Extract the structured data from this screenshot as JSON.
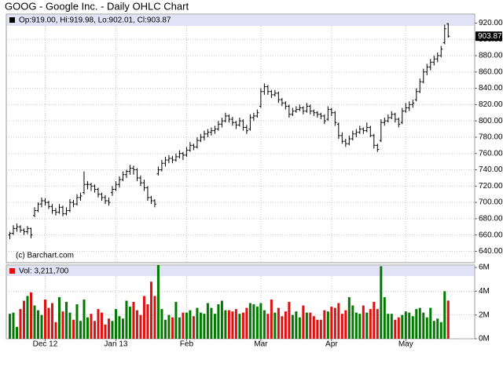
{
  "chart_data": [
    {
      "type": "ohlc",
      "title": "GOOG - Google Inc. - Daily OHLC Chart",
      "info": "Op:919.00, Hi:919.98, Lo:902.01, Cl:903.87",
      "source": "(c) Barchart.com",
      "last_label": "903.87",
      "color": "#000000",
      "xlim": [
        -1,
        131.5
      ],
      "ylim": [
        626,
        931
      ],
      "grid": true,
      "yticks": [
        {
          "value": 640,
          "label": "640.00"
        },
        {
          "value": 660,
          "label": "660.00"
        },
        {
          "value": 680,
          "label": "680.00"
        },
        {
          "value": 700,
          "label": "700.00"
        },
        {
          "value": 720,
          "label": "720.00"
        },
        {
          "value": 740,
          "label": "740.00"
        },
        {
          "value": 760,
          "label": "760.00"
        },
        {
          "value": 780,
          "label": "780.00"
        },
        {
          "value": 800,
          "label": "800.00"
        },
        {
          "value": 820,
          "label": "820.00"
        },
        {
          "value": 840,
          "label": "840.00"
        },
        {
          "value": 860,
          "label": "860.00"
        },
        {
          "value": 880,
          "label": "880.00"
        },
        {
          "value": 900,
          "label": "900.00"
        },
        {
          "value": 920,
          "label": "920.00"
        }
      ],
      "ohlc": [
        [
          660,
          664,
          655,
          662
        ],
        [
          662,
          672,
          660,
          668
        ],
        [
          668,
          674,
          664,
          670
        ],
        [
          670,
          672,
          663,
          666
        ],
        [
          666,
          668,
          660,
          664
        ],
        [
          664,
          671,
          661,
          668
        ],
        [
          668,
          669,
          656,
          660
        ],
        [
          684,
          694,
          682,
          690
        ],
        [
          690,
          700,
          688,
          698
        ],
        [
          698,
          706,
          694,
          702
        ],
        [
          702,
          705,
          696,
          700
        ],
        [
          700,
          702,
          692,
          695
        ],
        [
          695,
          698,
          686,
          690
        ],
        [
          690,
          693,
          684,
          688
        ],
        [
          688,
          698,
          686,
          694
        ],
        [
          694,
          696,
          683,
          686
        ],
        [
          686,
          694,
          684,
          690
        ],
        [
          690,
          704,
          688,
          700
        ],
        [
          700,
          703,
          694,
          698
        ],
        [
          698,
          710,
          696,
          706
        ],
        [
          706,
          712,
          702,
          708
        ],
        [
          712,
          738,
          710,
          722
        ],
        [
          722,
          726,
          716,
          722
        ],
        [
          722,
          724,
          714,
          720
        ],
        [
          720,
          722,
          712,
          716
        ],
        [
          716,
          718,
          706,
          710
        ],
        [
          710,
          712,
          702,
          706
        ],
        [
          706,
          709,
          698,
          702
        ],
        [
          702,
          706,
          696,
          700
        ],
        [
          712,
          720,
          708,
          716
        ],
        [
          716,
          726,
          714,
          722
        ],
        [
          722,
          732,
          718,
          728
        ],
        [
          728,
          738,
          726,
          734
        ],
        [
          734,
          740,
          730,
          738
        ],
        [
          738,
          746,
          734,
          742
        ],
        [
          742,
          745,
          734,
          740
        ],
        [
          740,
          742,
          726,
          730
        ],
        [
          730,
          733,
          720,
          724
        ],
        [
          724,
          728,
          714,
          718
        ],
        [
          718,
          720,
          702,
          706
        ],
        [
          706,
          708,
          698,
          702
        ],
        [
          702,
          704,
          694,
          698
        ],
        [
          735,
          744,
          733,
          740
        ],
        [
          740,
          752,
          738,
          748
        ],
        [
          748,
          756,
          744,
          752
        ],
        [
          752,
          758,
          748,
          754
        ],
        [
          754,
          757,
          748,
          752
        ],
        [
          752,
          760,
          750,
          756
        ],
        [
          756,
          764,
          754,
          760
        ],
        [
          760,
          762,
          752,
          758
        ],
        [
          758,
          768,
          756,
          764
        ],
        [
          764,
          774,
          762,
          770
        ],
        [
          770,
          772,
          764,
          768
        ],
        [
          768,
          780,
          766,
          776
        ],
        [
          776,
          784,
          774,
          780
        ],
        [
          780,
          788,
          776,
          784
        ],
        [
          784,
          790,
          780,
          786
        ],
        [
          786,
          792,
          782,
          788
        ],
        [
          788,
          794,
          784,
          790
        ],
        [
          790,
          800,
          788,
          796
        ],
        [
          796,
          804,
          792,
          800
        ],
        [
          800,
          810,
          798,
          806
        ],
        [
          806,
          808,
          798,
          802
        ],
        [
          802,
          805,
          794,
          798
        ],
        [
          798,
          800,
          790,
          795
        ],
        [
          795,
          804,
          793,
          800
        ],
        [
          800,
          802,
          788,
          792
        ],
        [
          792,
          795,
          784,
          788
        ],
        [
          790,
          808,
          788,
          804
        ],
        [
          804,
          810,
          800,
          806
        ],
        [
          806,
          814,
          804,
          810
        ],
        [
          818,
          840,
          816,
          836
        ],
        [
          836,
          846,
          832,
          842
        ],
        [
          842,
          844,
          832,
          836
        ],
        [
          836,
          838,
          828,
          832
        ],
        [
          832,
          838,
          830,
          834
        ],
        [
          834,
          836,
          822,
          826
        ],
        [
          826,
          828,
          818,
          822
        ],
        [
          822,
          824,
          814,
          818
        ],
        [
          818,
          820,
          804,
          808
        ],
        [
          808,
          816,
          806,
          812
        ],
        [
          812,
          818,
          810,
          814
        ],
        [
          814,
          820,
          812,
          816
        ],
        [
          816,
          818,
          808,
          812
        ],
        [
          812,
          822,
          810,
          818
        ],
        [
          818,
          820,
          808,
          812
        ],
        [
          812,
          814,
          806,
          810
        ],
        [
          810,
          812,
          804,
          808
        ],
        [
          808,
          810,
          802,
          806
        ],
        [
          806,
          808,
          796,
          800
        ],
        [
          802,
          818,
          800,
          814
        ],
        [
          814,
          816,
          806,
          810
        ],
        [
          810,
          812,
          794,
          798
        ],
        [
          796,
          798,
          778,
          782
        ],
        [
          782,
          786,
          772,
          775
        ],
        [
          775,
          778,
          768,
          772
        ],
        [
          772,
          782,
          770,
          778
        ],
        [
          778,
          788,
          776,
          784
        ],
        [
          784,
          790,
          780,
          786
        ],
        [
          786,
          794,
          784,
          790
        ],
        [
          790,
          792,
          784,
          788
        ],
        [
          788,
          798,
          786,
          792
        ],
        [
          792,
          794,
          780,
          782
        ],
        [
          782,
          784,
          766,
          770
        ],
        [
          770,
          772,
          762,
          765
        ],
        [
          776,
          802,
          774,
          798
        ],
        [
          798,
          804,
          794,
          800
        ],
        [
          800,
          808,
          798,
          804
        ],
        [
          804,
          812,
          802,
          808
        ],
        [
          808,
          810,
          798,
          802
        ],
        [
          802,
          804,
          792,
          796
        ],
        [
          798,
          816,
          796,
          812
        ],
        [
          812,
          822,
          810,
          816
        ],
        [
          816,
          824,
          812,
          820
        ],
        [
          820,
          826,
          816,
          822
        ],
        [
          826,
          840,
          824,
          836
        ],
        [
          836,
          852,
          834,
          848
        ],
        [
          848,
          864,
          846,
          860
        ],
        [
          860,
          870,
          856,
          866
        ],
        [
          866,
          876,
          862,
          872
        ],
        [
          872,
          880,
          868,
          876
        ],
        [
          876,
          884,
          872,
          880
        ],
        [
          880,
          892,
          878,
          888
        ],
        [
          896,
          918,
          894,
          913
        ],
        [
          919,
          919.98,
          902.01,
          903.87
        ]
      ]
    },
    {
      "type": "bar",
      "title": "Vol: 3,211,700",
      "up_color": "#007a00",
      "down_color": "#e01010",
      "xlim": [
        -1,
        131.5
      ],
      "ylim": [
        0,
        6.2
      ],
      "grid": true,
      "yticks": [
        {
          "value": 0,
          "label": "0M"
        },
        {
          "value": 2,
          "label": "2M"
        },
        {
          "value": 4,
          "label": "4M"
        },
        {
          "value": 6,
          "label": "6M"
        }
      ],
      "xticks": [
        {
          "value": 10,
          "label": "Dec 12"
        },
        {
          "value": 30,
          "label": "Jan 13"
        },
        {
          "value": 50,
          "label": "Feb"
        },
        {
          "value": 71,
          "label": "Mar"
        },
        {
          "value": 91,
          "label": "Apr"
        },
        {
          "value": 112,
          "label": "May"
        }
      ],
      "values": [
        2.1,
        2.2,
        1.0,
        2.5,
        3.2,
        3.6,
        3.9,
        2.8,
        2.4,
        2.0,
        3.3,
        2.6,
        3.0,
        1.4,
        3.5,
        2.3,
        3.1,
        2.2,
        1.6,
        2.9,
        1.5,
        3.3,
        1.8,
        2.1,
        1.5,
        2.5,
        2.2,
        1.2,
        1.7,
        1.5,
        2.5,
        1.9,
        1.7,
        3.2,
        2.7,
        3.1,
        2.4,
        2.0,
        3.6,
        2.9,
        4.8,
        3.6,
        6.2,
        2.5,
        1.6,
        2.0,
        1.8,
        3.1,
        1.8,
        2.2,
        2.2,
        2.4,
        1.9,
        2.6,
        2.2,
        2.1,
        3.0,
        2.6,
        2.1,
        2.9,
        3.2,
        2.4,
        2.4,
        2.3,
        2.5,
        2.1,
        2.2,
        2.6,
        3.0,
        2.9,
        2.7,
        3.0,
        2.4,
        2.1,
        3.3,
        2.2,
        2.6,
        1.9,
        2.3,
        3.1,
        2.0,
        2.3,
        1.8,
        2.8,
        2.2,
        2.2,
        1.9,
        1.6,
        1.6,
        2.4,
        2.3,
        2.7,
        2.6,
        3.0,
        2.1,
        2.4,
        3.5,
        2.8,
        2.2,
        2.1,
        2.8,
        2.2,
        2.5,
        3.1,
        2.5,
        6.1,
        3.5,
        2.1,
        2.1,
        1.6,
        1.8,
        2.0,
        2.3,
        2.2,
        1.9,
        2.5,
        2.6,
        2.2,
        1.8,
        2.6,
        1.5,
        1.7,
        1.4,
        4.0,
        3.2117
      ]
    }
  ]
}
